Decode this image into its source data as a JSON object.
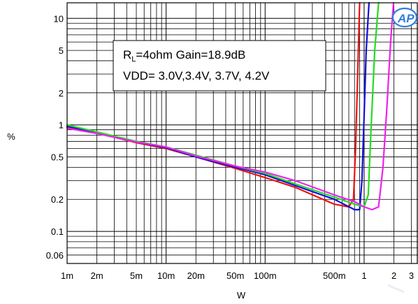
{
  "chart_data": {
    "type": "line",
    "title": "",
    "xlabel": "W",
    "ylabel": "%",
    "x_scale": "log",
    "y_scale": "log",
    "xlim": [
      0.001,
      3.5
    ],
    "ylim": [
      0.05,
      14
    ],
    "grid": true,
    "x_tick_labels": [
      {
        "value": 0.001,
        "label": "1m"
      },
      {
        "value": 0.002,
        "label": "2m"
      },
      {
        "value": 0.005,
        "label": "5m"
      },
      {
        "value": 0.01,
        "label": "10m"
      },
      {
        "value": 0.02,
        "label": "20m"
      },
      {
        "value": 0.05,
        "label": "50m"
      },
      {
        "value": 0.1,
        "label": "100m"
      },
      {
        "value": 0.5,
        "label": "500m"
      },
      {
        "value": 1,
        "label": "1"
      },
      {
        "value": 2,
        "label": "2"
      },
      {
        "value": 3,
        "label": "3"
      }
    ],
    "y_tick_labels": [
      {
        "value": 0.06,
        "label": "0.06"
      },
      {
        "value": 0.1,
        "label": "0.1"
      },
      {
        "value": 0.2,
        "label": "0.2"
      },
      {
        "value": 0.5,
        "label": "0.5"
      },
      {
        "value": 1,
        "label": "1"
      },
      {
        "value": 2,
        "label": "2"
      },
      {
        "value": 5,
        "label": "5"
      },
      {
        "value": 10,
        "label": "10"
      }
    ],
    "annotations": {
      "line1_main": "R",
      "line1_sub": "L",
      "line1_rest": "=4ohm Gain=18.9dB",
      "line2": "VDD= 3.0V,3.4V, 3.7V, 4.2V"
    },
    "logo_text": "AP",
    "series": [
      {
        "color": "#ee1111",
        "points": [
          [
            0.001,
            0.95
          ],
          [
            0.002,
            0.84
          ],
          [
            0.005,
            0.68
          ],
          [
            0.01,
            0.6
          ],
          [
            0.02,
            0.5
          ],
          [
            0.05,
            0.39
          ],
          [
            0.1,
            0.32
          ],
          [
            0.2,
            0.26
          ],
          [
            0.5,
            0.18
          ],
          [
            0.7,
            0.17
          ],
          [
            0.78,
            0.2
          ],
          [
            0.82,
            0.6
          ],
          [
            0.86,
            3
          ],
          [
            0.9,
            14
          ]
        ]
      },
      {
        "color": "#1010dd",
        "points": [
          [
            0.001,
            0.97
          ],
          [
            0.002,
            0.85
          ],
          [
            0.005,
            0.69
          ],
          [
            0.01,
            0.61
          ],
          [
            0.02,
            0.5
          ],
          [
            0.05,
            0.4
          ],
          [
            0.1,
            0.34
          ],
          [
            0.2,
            0.27
          ],
          [
            0.5,
            0.2
          ],
          [
            0.8,
            0.16
          ],
          [
            0.9,
            0.16
          ],
          [
            0.95,
            0.3
          ],
          [
            1.0,
            1.2
          ],
          [
            1.05,
            5
          ],
          [
            1.12,
            14
          ]
        ]
      },
      {
        "color": "#22dd22",
        "points": [
          [
            0.001,
            1.0
          ],
          [
            0.002,
            0.86
          ],
          [
            0.005,
            0.7
          ],
          [
            0.01,
            0.62
          ],
          [
            0.02,
            0.52
          ],
          [
            0.05,
            0.41
          ],
          [
            0.1,
            0.35
          ],
          [
            0.2,
            0.28
          ],
          [
            0.5,
            0.21
          ],
          [
            0.8,
            0.18
          ],
          [
            1.0,
            0.17
          ],
          [
            1.1,
            0.22
          ],
          [
            1.18,
            1.0
          ],
          [
            1.28,
            5
          ],
          [
            1.4,
            14
          ]
        ]
      },
      {
        "color": "#ee22ee",
        "points": [
          [
            0.001,
            0.93
          ],
          [
            0.002,
            0.83
          ],
          [
            0.005,
            0.69
          ],
          [
            0.01,
            0.62
          ],
          [
            0.02,
            0.51
          ],
          [
            0.05,
            0.41
          ],
          [
            0.1,
            0.36
          ],
          [
            0.2,
            0.3
          ],
          [
            0.5,
            0.22
          ],
          [
            0.8,
            0.19
          ],
          [
            1.0,
            0.17
          ],
          [
            1.2,
            0.16
          ],
          [
            1.4,
            0.17
          ],
          [
            1.55,
            0.4
          ],
          [
            1.7,
            1.5
          ],
          [
            1.85,
            6
          ],
          [
            1.98,
            14
          ]
        ]
      }
    ]
  }
}
